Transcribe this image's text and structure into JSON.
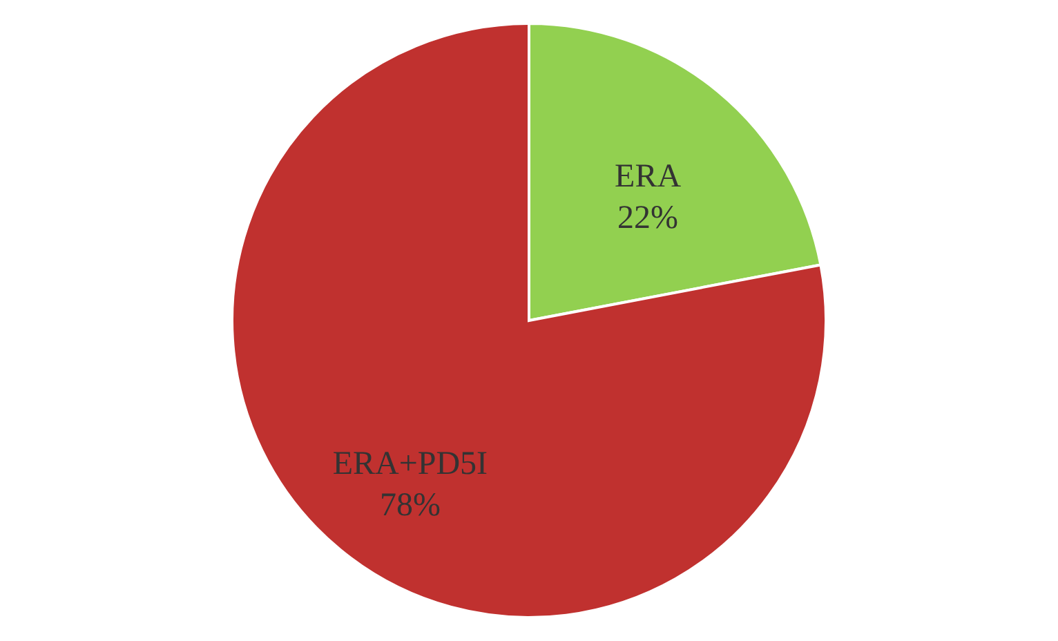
{
  "chart_data": {
    "type": "pie",
    "categories": [
      "ERA",
      "ERA+PD5I"
    ],
    "values": [
      22,
      78
    ],
    "colors": [
      "#92d050",
      "#c0312f"
    ],
    "value_labels": [
      "22%",
      "78%"
    ],
    "legend": false
  }
}
